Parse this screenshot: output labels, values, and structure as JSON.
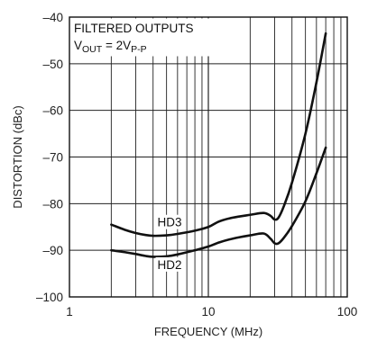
{
  "chart_data": {
    "type": "line",
    "xlabel": "FREQUENCY (MHz)",
    "ylabel": "DISTORTION (dBc)",
    "xscale": "log",
    "xlim": [
      1,
      100
    ],
    "ylim": [
      -100,
      -40
    ],
    "xticks": [
      1,
      10,
      100
    ],
    "xtick_labels": [
      "1",
      "10",
      "100"
    ],
    "yticks": [
      -100,
      -90,
      -80,
      -70,
      -60,
      -50,
      -40
    ],
    "ytick_labels": [
      "–100",
      "–90",
      "–80",
      "–70",
      "–60",
      "–50",
      "–40"
    ],
    "grid": true,
    "annotation": {
      "line1": "FILTERED OUTPUTS",
      "line2_prefix": "V",
      "line2_sub": "OUT",
      "line2_mid": " = 2V",
      "line2_sub2": "P-P"
    },
    "series": [
      {
        "name": "HD3",
        "x": [
          2,
          2.5,
          3,
          3.5,
          4,
          5,
          6,
          8,
          10,
          12,
          15,
          20,
          25,
          28,
          30,
          32,
          35,
          40,
          50,
          60,
          70
        ],
        "y": [
          -84.5,
          -85.6,
          -86.3,
          -86.7,
          -86.9,
          -86.8,
          -86.5,
          -85.8,
          -85.0,
          -83.8,
          -83.0,
          -82.4,
          -82.0,
          -82.6,
          -83.4,
          -83.0,
          -80.5,
          -75.5,
          -65,
          -54,
          -43.5
        ]
      },
      {
        "name": "HD2",
        "x": [
          2,
          2.5,
          3,
          3.5,
          4,
          5,
          6,
          8,
          10,
          12,
          15,
          20,
          25,
          28,
          30,
          32,
          35,
          40,
          50,
          60,
          70
        ],
        "y": [
          -90.0,
          -90.4,
          -90.8,
          -91.2,
          -91.4,
          -91.3,
          -90.9,
          -90.0,
          -89.2,
          -88.3,
          -87.5,
          -86.8,
          -86.4,
          -87.5,
          -88.5,
          -88.5,
          -87.3,
          -84.8,
          -79.5,
          -73.5,
          -68.0
        ]
      }
    ]
  }
}
